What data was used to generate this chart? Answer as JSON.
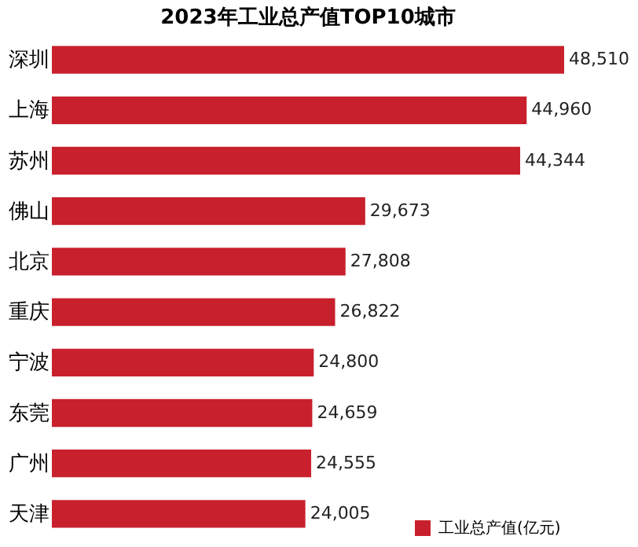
{
  "chart_data": {
    "type": "bar",
    "orientation": "horizontal",
    "title": "2023年工业总产值TOP10城市",
    "categories": [
      "深圳",
      "上海",
      "苏州",
      "佛山",
      "北京",
      "重庆",
      "宁波",
      "东莞",
      "广州",
      "天津"
    ],
    "series": [
      {
        "name": "工业总产值(亿元)",
        "color": "#c8202c",
        "values": [
          48510,
          44960,
          44344,
          29673,
          27808,
          26822,
          24800,
          24659,
          24555,
          24005
        ],
        "value_labels": [
          "48,510",
          "44,960",
          "44,344",
          "29,673",
          "27,808",
          "26,822",
          "24,800",
          "24,659",
          "24,555",
          "24,005"
        ]
      }
    ],
    "legend": "bottom right",
    "tick_labels": "y"
  }
}
